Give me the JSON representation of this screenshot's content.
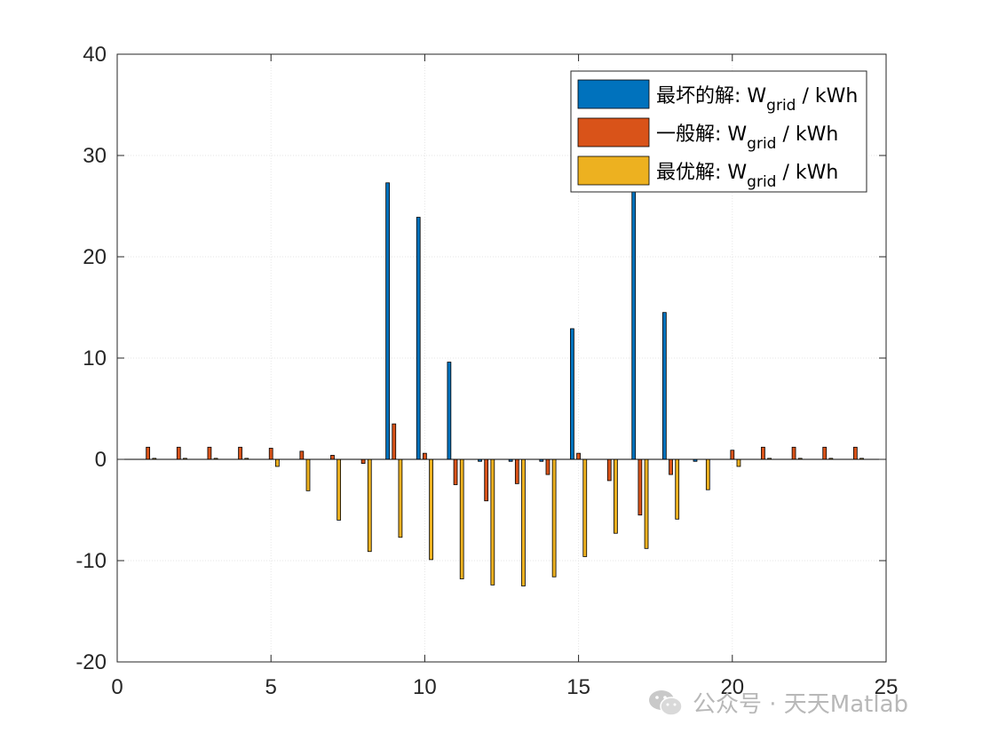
{
  "chart_data": {
    "type": "bar",
    "x": [
      1,
      2,
      3,
      4,
      5,
      6,
      7,
      8,
      9,
      10,
      11,
      12,
      13,
      14,
      15,
      16,
      17,
      18,
      19,
      20,
      21,
      22,
      23,
      24
    ],
    "series": [
      {
        "name": "最坏的解: W_grid / kWh",
        "label_main": "最坏的解: W",
        "label_sub": "grid",
        "label_unit": " / kWh",
        "color": "#0072BD",
        "values": [
          0,
          0,
          0,
          0,
          0,
          0,
          0,
          0,
          27.3,
          23.9,
          9.6,
          -0.2,
          -0.2,
          -0.2,
          12.9,
          0,
          30.0,
          14.5,
          -0.2,
          0,
          0,
          0,
          0,
          0
        ]
      },
      {
        "name": "一般解: W_grid / kWh",
        "label_main": "一般解: W",
        "label_sub": "grid",
        "label_unit": " / kWh",
        "color": "#D95319",
        "values": [
          1.2,
          1.2,
          1.2,
          1.2,
          1.1,
          0.8,
          0.4,
          -0.4,
          3.5,
          0.6,
          -2.5,
          -4.1,
          -2.4,
          -1.5,
          0.6,
          -2.1,
          -5.5,
          -1.5,
          0,
          0.9,
          1.2,
          1.2,
          1.2,
          1.2
        ]
      },
      {
        "name": "最优解: W_grid / kWh",
        "label_main": "最优解: W",
        "label_sub": "grid",
        "label_unit": " / kWh",
        "color": "#EDB120",
        "values": [
          0.1,
          0.1,
          0.1,
          0.1,
          -0.7,
          -3.1,
          -6.0,
          -9.1,
          -7.7,
          -9.9,
          -11.8,
          -12.4,
          -12.5,
          -11.6,
          -9.6,
          -7.3,
          -8.8,
          -5.9,
          -3.0,
          -0.7,
          0.1,
          0.1,
          0.1,
          0.1
        ]
      }
    ],
    "xlim": [
      0,
      25
    ],
    "ylim": [
      -20,
      40
    ],
    "xticks": [
      0,
      5,
      10,
      15,
      20,
      25
    ],
    "yticks": [
      -20,
      -10,
      0,
      10,
      20,
      30,
      40
    ],
    "xlabel": "",
    "ylabel": "",
    "title": "",
    "grid": true,
    "legend_position": "top-right"
  },
  "watermark": {
    "text": "公众号 · 天天Matlab",
    "icon": "wechat-icon",
    "color": "#b8b8b8"
  }
}
